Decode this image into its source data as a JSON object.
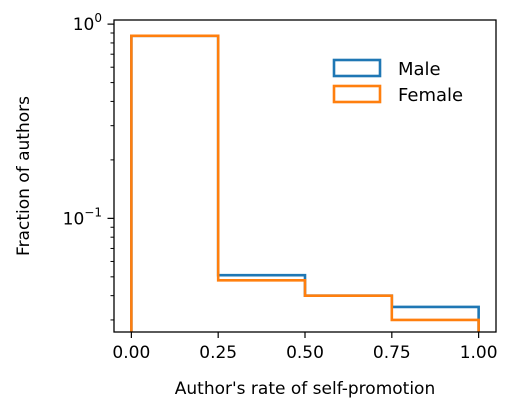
{
  "chart_data": {
    "type": "histogram-step",
    "xlabel": "Author's rate of self-promotion",
    "ylabel": "Fraction of authors",
    "x_ticks": [
      "0.00",
      "0.25",
      "0.50",
      "0.75",
      "1.00"
    ],
    "y_scale": "log",
    "y_ticks": [
      {
        "base": "10",
        "exp": "0",
        "value": 1
      },
      {
        "base": "10",
        "exp": "−1",
        "value": 0.1
      }
    ],
    "xlim": [
      -0.05,
      1.05
    ],
    "ylim": [
      0.026,
      1.05
    ],
    "bin_edges": [
      0,
      0.25,
      0.5,
      0.75,
      1.0
    ],
    "legend_position": "upper-right",
    "series": [
      {
        "name": "Male",
        "color": "#1f77b4",
        "values": [
          0.87,
          0.051,
          0.04,
          0.035
        ]
      },
      {
        "name": "Female",
        "color": "#ff7f0e",
        "values": [
          0.87,
          0.048,
          0.04,
          0.03
        ]
      }
    ]
  }
}
